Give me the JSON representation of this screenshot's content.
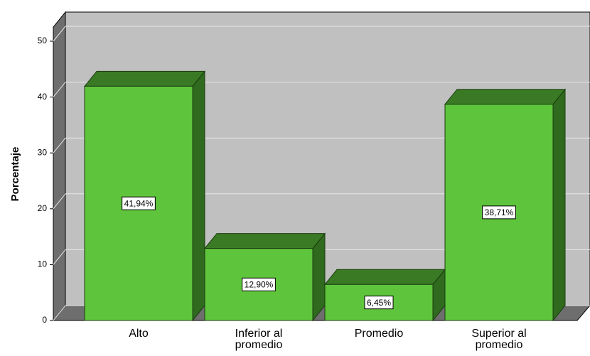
{
  "chart_data": {
    "type": "bar",
    "ylabel": "Porcentaje",
    "categories": [
      "Alto",
      "Inferior al promedio",
      "Promedio",
      "Superior al promedio"
    ],
    "values": [
      41.94,
      12.9,
      6.45,
      38.71
    ],
    "value_labels": [
      "41,94%",
      "12,90%",
      "6,45%",
      "38,71%"
    ],
    "color": "#5ec43b",
    "ylim": [
      0,
      50
    ],
    "yticks": [
      0,
      10,
      20,
      30,
      40,
      50
    ],
    "grid": true
  }
}
